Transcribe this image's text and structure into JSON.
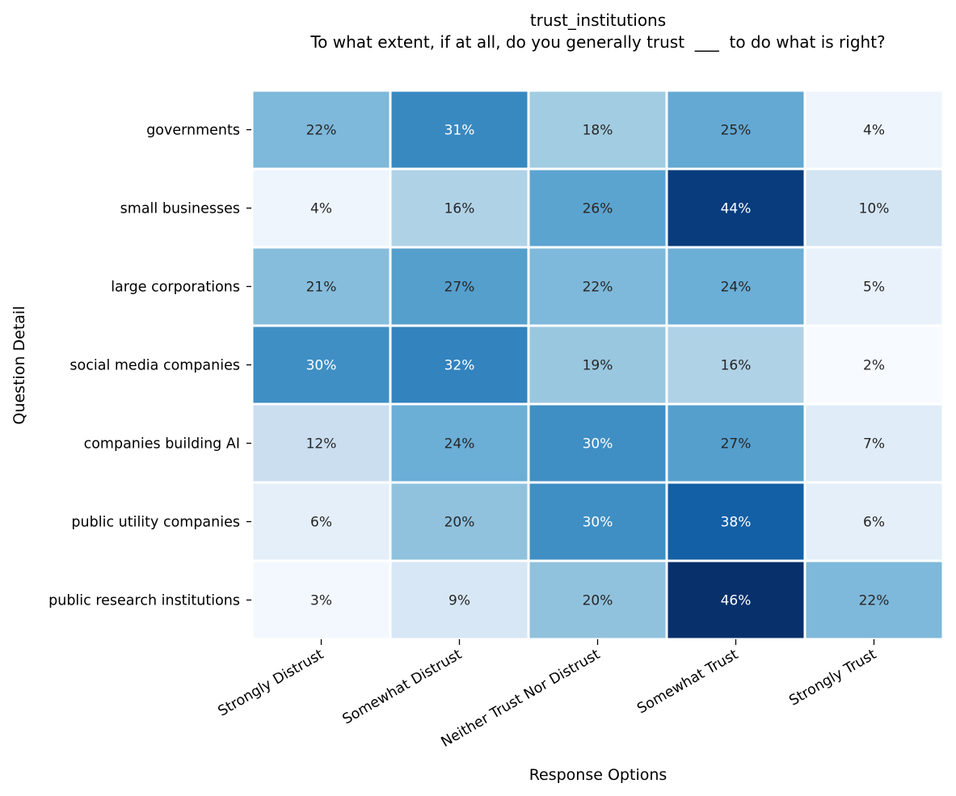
{
  "chart_data": {
    "type": "heatmap",
    "title": "trust_institutions",
    "subtitle": "To what extent, if at all, do you generally trust  ___  to do what is right?",
    "xlabel": "Response Options",
    "ylabel": "Question Detail",
    "columns": [
      "Strongly Distrust",
      "Somewhat Distrust",
      "Neither Trust Nor Distrust",
      "Somewhat Trust",
      "Strongly Trust"
    ],
    "rows": [
      "governments",
      "small businesses",
      "large corporations",
      "social media companies",
      "companies building AI",
      "public utility companies",
      "public research institutions"
    ],
    "values": [
      [
        22,
        31,
        18,
        25,
        4
      ],
      [
        4,
        16,
        26,
        44,
        10
      ],
      [
        21,
        27,
        22,
        24,
        5
      ],
      [
        30,
        32,
        19,
        16,
        2
      ],
      [
        12,
        24,
        30,
        27,
        7
      ],
      [
        6,
        20,
        30,
        38,
        6
      ],
      [
        3,
        9,
        20,
        46,
        22
      ]
    ],
    "value_suffix": "%",
    "colormap": "Blues",
    "color_range": [
      2,
      46
    ],
    "colorbar": false,
    "grid": false
  }
}
